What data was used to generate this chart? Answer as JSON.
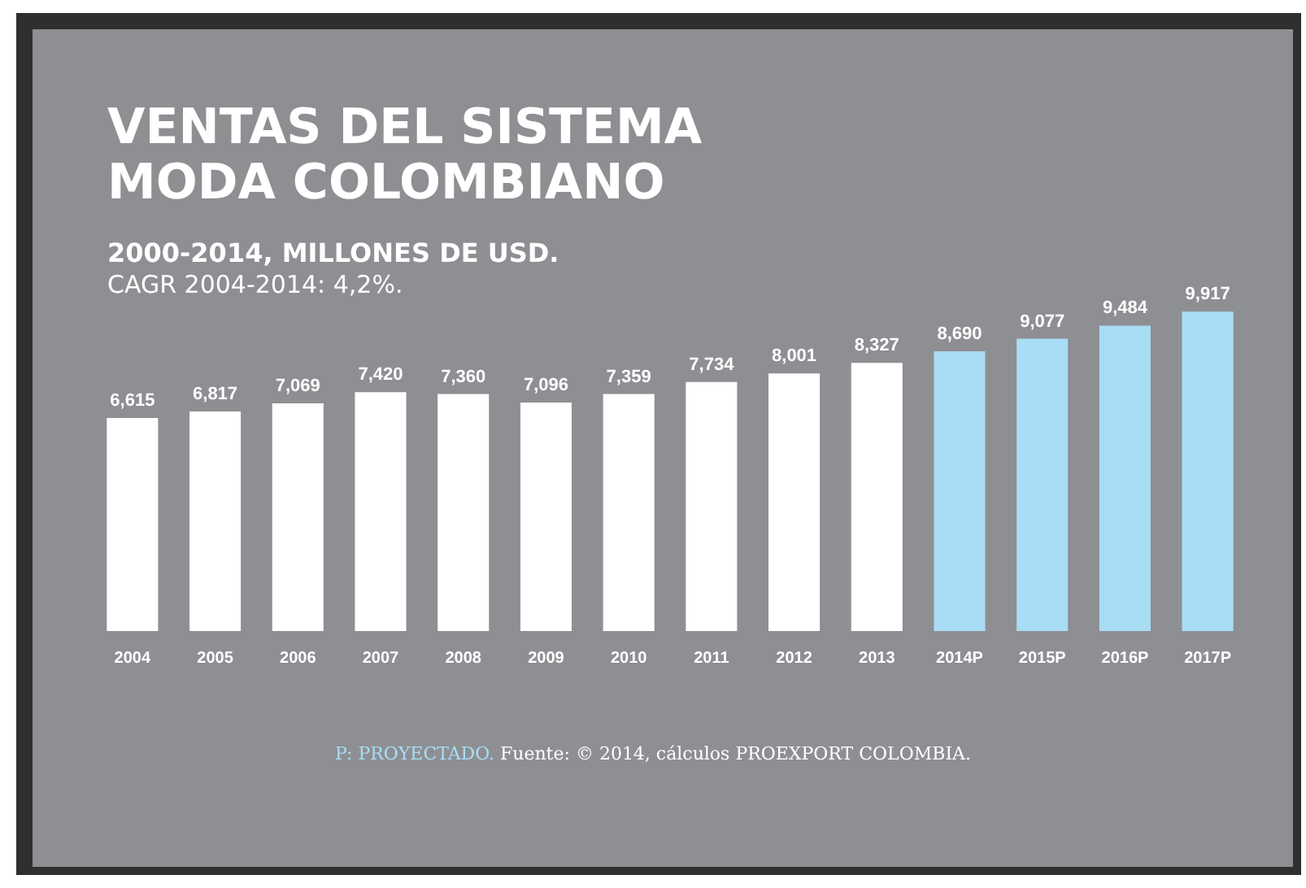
{
  "chart_data": {
    "type": "bar",
    "title": "VENTAS DEL SISTEMA MODA COLOMBIANO",
    "subtitle": "2000-2014, MILLONES DE USD.",
    "annotations": [
      "CAGR 2004-2014: 4,2%.",
      "P: PROYECTADO.",
      "Fuente: © 2014, cálculos PROEXPORT COLOMBIA."
    ],
    "categories": [
      "2004",
      "2005",
      "2006",
      "2007",
      "2008",
      "2009",
      "2010",
      "2011",
      "2012",
      "2013",
      "2014P",
      "2015P",
      "2016P",
      "2017P"
    ],
    "values": [
      6615,
      6817,
      7069,
      7420,
      7360,
      7096,
      7359,
      7734,
      8001,
      8327,
      8690,
      9077,
      9484,
      9917
    ],
    "colors": [
      "#ffffff",
      "#ffffff",
      "#ffffff",
      "#ffffff",
      "#ffffff",
      "#ffffff",
      "#ffffff",
      "#ffffff",
      "#ffffff",
      "#ffffff",
      "#a9ddf5",
      "#a9ddf5",
      "#a9ddf5",
      "#a9ddf5"
    ],
    "value_labels": [
      "6,615",
      "6,817",
      "7,069",
      "7,420",
      "7,360",
      "7,096",
      "7,359",
      "7,734",
      "8,001",
      "8,327",
      "8,690",
      "9,077",
      "9,484",
      "9,917"
    ]
  }
}
